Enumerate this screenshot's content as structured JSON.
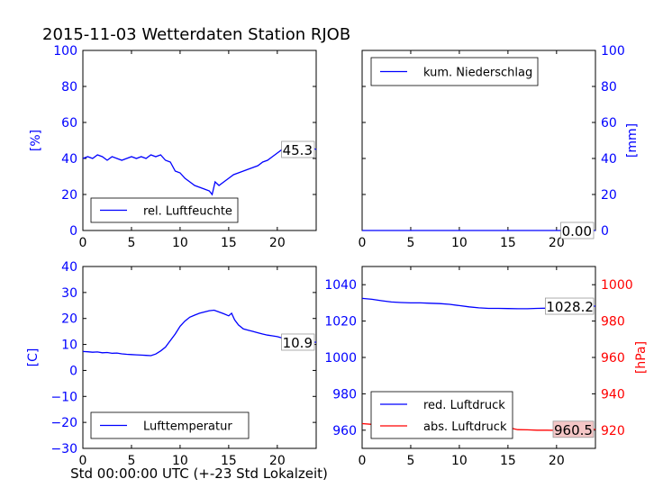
{
  "figure": {
    "title": "2015-11-03 Wetterdaten Station RJOB",
    "xlabel": "Std 00:00:00 UTC (+-23 Std Lokalzeit)"
  },
  "colors": {
    "blue": "#0000ff",
    "red": "#ff0000",
    "black": "#000000",
    "label_red_bg": "#f4c6c6"
  },
  "chart_data": [
    {
      "id": "humidity",
      "type": "line",
      "ylabel": "[%]",
      "xlim": [
        0,
        24
      ],
      "ylim": [
        0,
        100
      ],
      "xticks": [
        0,
        5,
        10,
        15,
        20
      ],
      "yticks": [
        0,
        20,
        40,
        60,
        80,
        100
      ],
      "legend": "lower-left",
      "last_value_label": "45.3",
      "series": [
        {
          "name": "rel. Luftfeuchte",
          "color": "#0000ff",
          "x": [
            0,
            0.5,
            1,
            1.5,
            2,
            2.5,
            3,
            3.5,
            4,
            4.5,
            5,
            5.5,
            6,
            6.5,
            7,
            7.5,
            8,
            8.5,
            9,
            9.5,
            10,
            10.5,
            11,
            11.5,
            12,
            12.5,
            13,
            13.3,
            13.6,
            14,
            14.5,
            15,
            15.5,
            16,
            16.5,
            17,
            17.5,
            18,
            18.5,
            19,
            19.5,
            20,
            20.5,
            21,
            21.5,
            22,
            22.5,
            23,
            23.5,
            24
          ],
          "values": [
            40,
            41,
            40,
            42,
            41,
            39,
            41,
            40,
            39,
            40,
            41,
            40,
            41,
            40,
            42,
            41,
            42,
            39,
            38,
            33,
            32,
            29,
            27,
            25,
            24,
            23,
            22,
            20,
            27,
            25,
            27,
            29,
            31,
            32,
            33,
            34,
            35,
            36,
            38,
            39,
            41,
            43,
            45,
            46,
            47,
            48,
            47,
            47,
            46,
            45
          ]
        }
      ]
    },
    {
      "id": "precipitation",
      "type": "line",
      "ylabel": "[mm]",
      "xlim": [
        0,
        24
      ],
      "ylim": [
        0,
        100
      ],
      "xticks": [
        0,
        5,
        10,
        15,
        20
      ],
      "yticks": [
        0,
        20,
        40,
        60,
        80,
        100
      ],
      "legend": "upper-left",
      "last_value_label": "0.00",
      "series": [
        {
          "name": "kum. Niederschlag",
          "color": "#0000ff",
          "x": [
            0,
            24
          ],
          "values": [
            0,
            0
          ]
        }
      ]
    },
    {
      "id": "temperature",
      "type": "line",
      "ylabel": "[C]",
      "xlim": [
        0,
        24
      ],
      "ylim": [
        -30,
        40
      ],
      "xticks": [
        0,
        5,
        10,
        15,
        20
      ],
      "yticks": [
        -30,
        -20,
        -10,
        0,
        10,
        20,
        30,
        40
      ],
      "legend": "lower-left",
      "last_value_label": "10.9",
      "series": [
        {
          "name": "Lufttemperatur",
          "color": "#0000ff",
          "x": [
            0,
            0.5,
            1,
            1.5,
            2,
            2.5,
            3,
            3.5,
            4,
            4.5,
            5,
            5.5,
            6,
            6.5,
            7,
            7.5,
            8,
            8.5,
            9,
            9.5,
            10,
            10.5,
            11,
            11.5,
            12,
            12.5,
            13,
            13.5,
            14,
            14.5,
            15,
            15.3,
            15.6,
            16,
            16.5,
            17,
            17.5,
            18,
            18.5,
            19,
            19.5,
            20,
            20.5,
            21,
            21.5,
            22,
            22.5,
            23,
            23.5,
            24
          ],
          "values": [
            7.3,
            7.2,
            7.0,
            7.1,
            6.8,
            6.9,
            6.6,
            6.7,
            6.4,
            6.2,
            6.1,
            6.0,
            5.9,
            5.8,
            5.7,
            6.3,
            7.5,
            9.0,
            11.5,
            14.0,
            17.0,
            19.0,
            20.5,
            21.3,
            22.0,
            22.5,
            23.0,
            23.2,
            22.5,
            21.8,
            21.0,
            22.0,
            19.5,
            17.5,
            16.0,
            15.5,
            15.0,
            14.5,
            14.0,
            13.6,
            13.3,
            13.0,
            12.5,
            12.0,
            11.5,
            11.2,
            11.0,
            10.9,
            10.8,
            10.9
          ]
        }
      ]
    },
    {
      "id": "pressure",
      "type": "line",
      "ylabel_right": "[hPa]",
      "xlim": [
        0,
        24
      ],
      "ylim": [
        950,
        1050
      ],
      "ylim_right": [
        910,
        1010
      ],
      "xticks": [
        0,
        5,
        10,
        15,
        20
      ],
      "yticks": [
        960,
        980,
        1000,
        1020,
        1040
      ],
      "yticks_right": [
        920,
        940,
        960,
        980,
        1000
      ],
      "legend": "lower-left",
      "series": [
        {
          "name": "red. Luftdruck",
          "color": "#0000ff",
          "last_value_label": "1028.2",
          "x": [
            0,
            1,
            2,
            3,
            4,
            5,
            6,
            7,
            8,
            9,
            10,
            11,
            12,
            13,
            14,
            15,
            16,
            17,
            18,
            19,
            20,
            21,
            22,
            23,
            24
          ],
          "values": [
            1032.5,
            1032.0,
            1031.2,
            1030.5,
            1030.2,
            1030.0,
            1030.0,
            1029.8,
            1029.6,
            1029.2,
            1028.5,
            1027.8,
            1027.3,
            1027.0,
            1027.0,
            1026.9,
            1026.8,
            1026.8,
            1027.0,
            1027.1,
            1027.2,
            1027.4,
            1027.6,
            1028.0,
            1028.2
          ]
        },
        {
          "name": "abs. Luftdruck",
          "color": "#ff0000",
          "last_value_label": "960.5",
          "x": [
            0,
            1,
            2,
            3,
            4,
            5,
            6,
            7,
            8,
            9,
            10,
            11,
            12,
            13,
            14,
            15,
            15.5,
            16,
            17,
            18,
            19,
            20,
            21,
            22,
            23,
            24
          ],
          "values": [
            963.6,
            963.2,
            962.4,
            961.6,
            961.3,
            961.3,
            961.4,
            961.5,
            961.6,
            961.8,
            962.3,
            962.2,
            962.3,
            962.3,
            962.0,
            961.5,
            960.9,
            960.3,
            960.2,
            960.0,
            960.0,
            959.9,
            960.0,
            960.0,
            960.3,
            960.5
          ]
        }
      ]
    }
  ]
}
